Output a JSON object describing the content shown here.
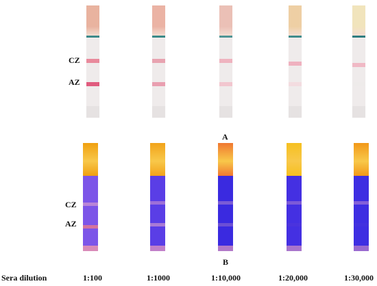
{
  "panel_a": {
    "label": "A",
    "cz_label": "CZ",
    "az_label": "AZ",
    "strips": [
      {
        "pad_color": "#e9b39f",
        "edge_color": "#3d8a8a",
        "cz_color": "#e98a9c",
        "az_color": "#e05b7e"
      },
      {
        "pad_color": "#ebb3a4",
        "edge_color": "#3a8a88",
        "cz_color": "#e8a3b0",
        "az_color": "#e99fb0"
      },
      {
        "pad_color": "#ebc0b6",
        "edge_color": "#4f9595",
        "cz_color": "#efb3bf",
        "az_color": "#f2c6cf"
      },
      {
        "pad_color": "#eecfa4",
        "edge_color": "#3f8c8c",
        "cz_color": "#efb1bf",
        "az_color": "#f3dce0"
      },
      {
        "pad_color": "#f1e4bc",
        "edge_color": "#2e7d80",
        "cz_color": "#f0b9c5",
        "az_color": "#eeebea"
      }
    ]
  },
  "panel_b": {
    "label": "B",
    "cz_label": "CZ",
    "az_label": "AZ",
    "strips": [
      {
        "pad_color": "#f0a010",
        "membrane_color": "#7c55e8",
        "cz_color": "#b985d7",
        "az_color": "#d4739d",
        "foot_color": "#d98ab8"
      },
      {
        "pad_color": "#f2a31a",
        "membrane_color": "#5a3ee6",
        "cz_color": "#9d6fd8",
        "az_color": "#a87ad5",
        "foot_color": "#c17fc9"
      },
      {
        "pad_color": "#f07830",
        "membrane_color": "#3a2ae0",
        "cz_color": "#7a5bd6",
        "az_color": "#6b4fd5",
        "foot_color": "#b178c8"
      },
      {
        "pad_color": "#f6c020",
        "membrane_color": "#4430e2",
        "cz_color": "#7c5ad8",
        "az_color": "#4a33de",
        "foot_color": "#a975cc"
      },
      {
        "pad_color": "#f29818",
        "membrane_color": "#3e2ee2",
        "cz_color": "#8460d9",
        "az_color": "#4231df",
        "foot_color": "#9a6ad0"
      }
    ]
  },
  "dilution_axis": {
    "title": "Sera dilution",
    "values": [
      "1:100",
      "1:1000",
      "1:10,000",
      "1:20,000",
      "1:30,000"
    ]
  }
}
